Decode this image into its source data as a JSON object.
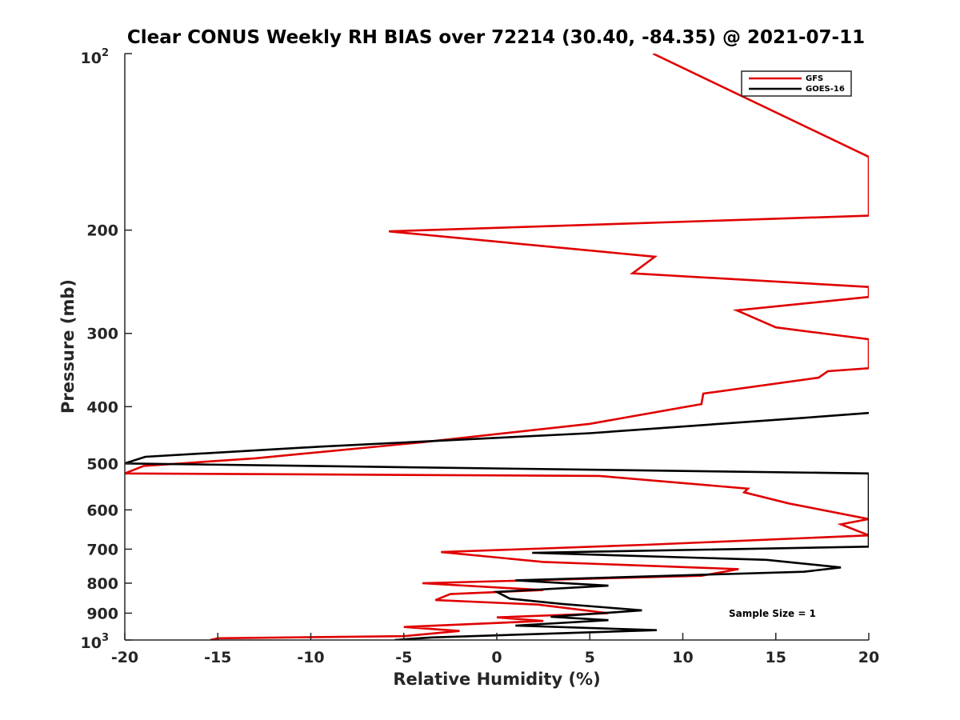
{
  "chart_data": {
    "type": "line",
    "title": "Clear CONUS Weekly RH BIAS over 72214 (30.40, -84.35) @ 2021-07-11",
    "xlabel": "Relative Humidity (%)",
    "ylabel": "Pressure (mb)",
    "xlim": [
      -20,
      20
    ],
    "ylim": [
      100,
      1000
    ],
    "yscale": "log",
    "y_reversed": true,
    "x_ticks": [
      -20,
      -15,
      -10,
      -5,
      0,
      5,
      10,
      15,
      20
    ],
    "x_tick_labels": [
      "-20",
      "-15",
      "-10",
      "-5",
      "0",
      "5",
      "10",
      "15",
      "20"
    ],
    "y_ticks": [
      100,
      200,
      300,
      400,
      500,
      600,
      700,
      800,
      900,
      1000
    ],
    "y_tick_labels": [
      "",
      "200",
      "300",
      "400",
      "500",
      "600",
      "700",
      "800",
      "900",
      ""
    ],
    "y_tick_labels_pow": [
      {
        "value": 100,
        "base": "10",
        "exp": "2"
      },
      {
        "value": 1000,
        "base": "10",
        "exp": "3"
      }
    ],
    "annotation": "Sample Size = 1",
    "legend_position": "top-right",
    "series": [
      {
        "name": "GFS",
        "color": "#e00000",
        "points": [
          [
            -15.4,
            1000
          ],
          [
            -15,
            993
          ],
          [
            -5,
            985
          ],
          [
            -2,
            965
          ],
          [
            -5,
            950
          ],
          [
            2.5,
            928
          ],
          [
            0,
            915
          ],
          [
            6,
            900
          ],
          [
            2.2,
            870
          ],
          [
            -3.3,
            855
          ],
          [
            -2.5,
            835
          ],
          [
            2.5,
            822
          ],
          [
            -4,
            800
          ],
          [
            11,
            777
          ],
          [
            13,
            757
          ],
          [
            2.5,
            736
          ],
          [
            -3,
            708
          ],
          [
            8,
            688
          ],
          [
            20,
            663
          ],
          [
            18.5,
            635
          ],
          [
            20,
            622
          ],
          [
            15.7,
            585
          ],
          [
            13.3,
            560
          ],
          [
            13.5,
            552
          ],
          [
            5.5,
            525
          ],
          [
            -20,
            520
          ],
          [
            -19,
            505
          ],
          [
            -13,
            490
          ],
          [
            -4,
            460
          ],
          [
            5,
            428
          ],
          [
            11,
            396
          ],
          [
            11.1,
            380
          ],
          [
            17.3,
            357
          ],
          [
            17.8,
            348
          ],
          [
            20,
            344
          ],
          [
            20,
            307
          ],
          [
            15,
            293
          ],
          [
            12.9,
            274
          ],
          [
            20,
            260
          ],
          [
            20,
            250
          ],
          [
            7.3,
            237
          ],
          [
            8.5,
            222
          ],
          [
            -5.8,
            201
          ],
          [
            20,
            189
          ],
          [
            20,
            150
          ],
          [
            8.4,
            100
          ]
        ]
      },
      {
        "name": "GOES-16",
        "color": "#000000",
        "points": [
          [
            -5.5,
            1000
          ],
          [
            -3.5,
            990
          ],
          [
            8.6,
            962
          ],
          [
            1,
            945
          ],
          [
            6,
            925
          ],
          [
            2.9,
            913
          ],
          [
            7.8,
            890
          ],
          [
            3.5,
            868
          ],
          [
            0.7,
            850
          ],
          [
            0,
            828
          ],
          [
            6,
            808
          ],
          [
            1,
            791
          ],
          [
            16.5,
            765
          ],
          [
            18.5,
            752
          ],
          [
            14.5,
            730
          ],
          [
            1.9,
            710
          ],
          [
            20,
            693
          ],
          [
            20,
            655
          ],
          [
            20,
            520
          ],
          [
            -20,
            500
          ],
          [
            -18.9,
            487
          ],
          [
            -9.5,
            468
          ],
          [
            5,
            444
          ],
          [
            16.5,
            418
          ],
          [
            20,
            410
          ]
        ]
      }
    ]
  }
}
